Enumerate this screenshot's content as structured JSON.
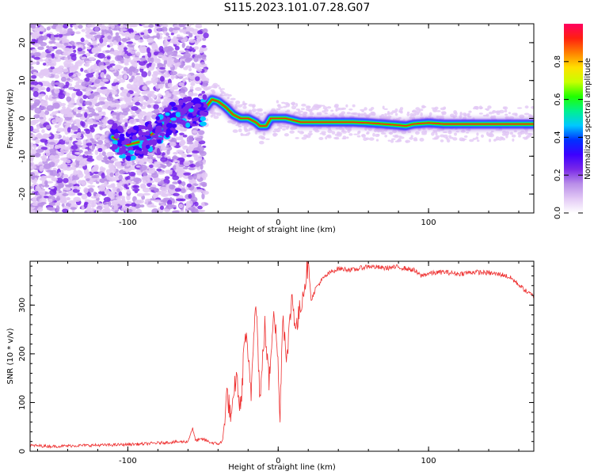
{
  "figure_title": "S115.2023.101.07.28.G07",
  "chart_data": [
    {
      "type": "heatmap",
      "xlabel": "Height of straight line (km)",
      "ylabel": "Frequency (Hz)",
      "xlim": [
        -165,
        170
      ],
      "ylim": [
        -25,
        25
      ],
      "x_ticks": [
        -100,
        0,
        100
      ],
      "y_ticks": [
        -20,
        -10,
        0,
        10,
        20
      ],
      "colorbar": {
        "label": "Normalized spectral amplitude",
        "range": [
          0,
          1
        ],
        "ticks": [
          0.0,
          0.2,
          0.4,
          0.6,
          0.8
        ],
        "tick_labels": [
          "0.0",
          "0.2",
          "0.4",
          "0.6",
          "0.8"
        ],
        "colormap": [
          "#ffffff",
          "#e2c8f5",
          "#b98ee8",
          "#7a28e8",
          "#3c00ff",
          "#0030ff",
          "#00c8ff",
          "#00f090",
          "#20ff00",
          "#c8ff00",
          "#ffe000",
          "#ff8000",
          "#ff2010",
          "#ff0060"
        ]
      },
      "ridge": {
        "x": [
          -110,
          -100,
          -90,
          -80,
          -70,
          -62,
          -55,
          -48,
          -44,
          -40,
          -35,
          -30,
          -25,
          -20,
          -15,
          -12,
          -8,
          -5,
          0,
          5,
          10,
          15,
          20,
          30,
          40,
          50,
          60,
          70,
          80,
          85,
          90,
          100,
          110,
          120,
          130,
          140,
          150,
          160,
          170
        ],
        "y": [
          -5,
          -7,
          -6,
          -3,
          0,
          2,
          1,
          3,
          5,
          4.5,
          3,
          1,
          0,
          0,
          -1,
          -2,
          -2,
          0,
          0,
          0,
          -0.5,
          -1,
          -1,
          -1,
          -1,
          -1,
          -1.2,
          -1.5,
          -1.8,
          -2,
          -1.5,
          -1.2,
          -1.5,
          -1.5,
          -1.5,
          -1.5,
          -1.5,
          -1.5,
          -1.5
        ]
      },
      "noise_region_x": [
        -165,
        -48
      ]
    },
    {
      "type": "line",
      "xlabel": "Height of straight line (km)",
      "ylabel": "SNR (10 * v/v)",
      "xlim": [
        -165,
        170
      ],
      "ylim": [
        0,
        390
      ],
      "x_ticks": [
        -100,
        0,
        100
      ],
      "y_ticks": [
        0,
        100,
        200,
        300
      ],
      "color": "#ee3030",
      "series": [
        {
          "x": [
            -165,
            -150,
            -130,
            -110,
            -90,
            -75,
            -60,
            -57,
            -55,
            -50,
            -45,
            -40,
            -37,
            -34,
            -31,
            -28,
            -25,
            -22,
            -18,
            -15,
            -12,
            -9,
            -6,
            -3,
            0,
            1,
            3,
            6,
            9,
            12,
            15,
            18,
            20,
            22,
            25,
            30,
            35,
            40,
            50,
            60,
            70,
            80,
            90,
            95,
            100,
            110,
            120,
            130,
            140,
            150,
            155,
            160,
            165,
            170
          ],
          "y": [
            12,
            10,
            12,
            13,
            15,
            18,
            20,
            48,
            22,
            25,
            18,
            15,
            20,
            120,
            60,
            160,
            80,
            250,
            120,
            330,
            100,
            260,
            140,
            300,
            180,
            55,
            280,
            190,
            320,
            250,
            300,
            350,
            390,
            310,
            335,
            355,
            368,
            375,
            372,
            380,
            376,
            378,
            372,
            360,
            365,
            368,
            364,
            368,
            366,
            362,
            355,
            342,
            328,
            318
          ]
        }
      ]
    }
  ]
}
